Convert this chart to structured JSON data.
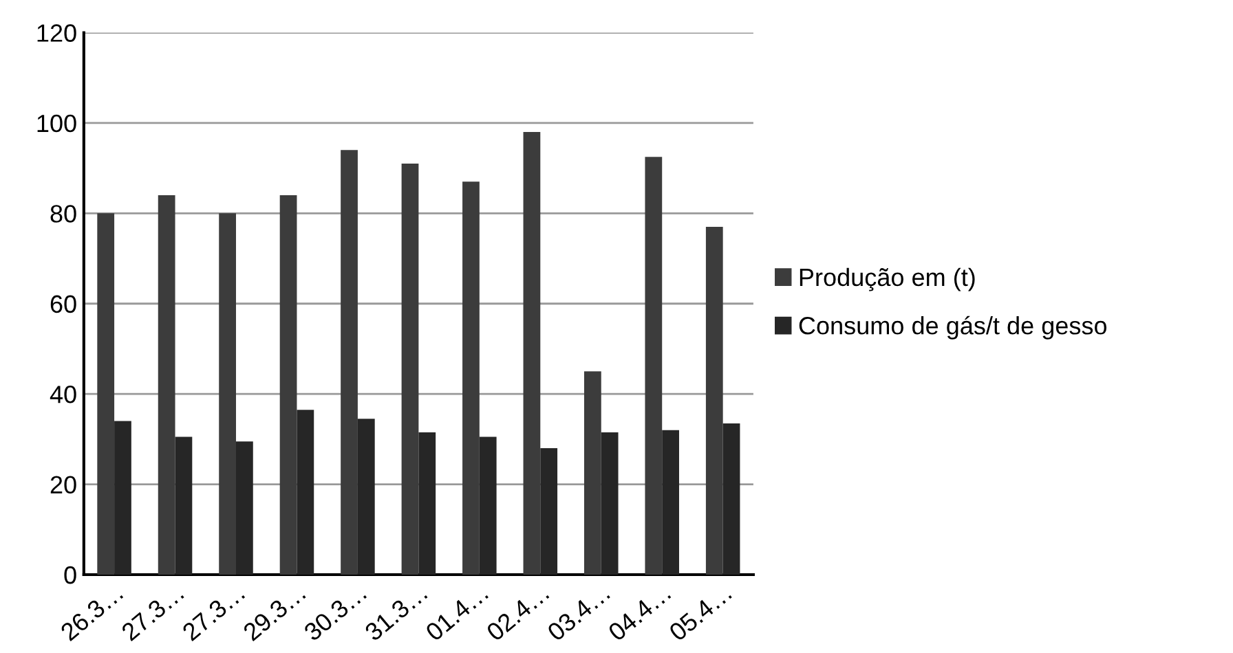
{
  "chart_data": {
    "type": "bar",
    "categories": [
      "26.3…",
      "27.3…",
      "27.3…",
      "29.3…",
      "30.3…",
      "31.3…",
      "01.4…",
      "02.4…",
      "03.4…",
      "04.4…",
      "05.4…"
    ],
    "series": [
      {
        "name": "Produção em (t)",
        "color": "#3c3c3c",
        "values": [
          80,
          84,
          80,
          84,
          94,
          91,
          87,
          98,
          45,
          92.5,
          77
        ]
      },
      {
        "name": "Consumo de gás/t de gesso",
        "color": "#262626",
        "values": [
          34,
          30.5,
          29.5,
          36.5,
          34.5,
          31.5,
          30.5,
          28,
          31.5,
          32,
          33.5
        ]
      }
    ],
    "ylim": [
      0,
      120
    ],
    "yticks": [
      0,
      20,
      40,
      60,
      80,
      100,
      120
    ],
    "grid": "y",
    "legend": "right"
  }
}
